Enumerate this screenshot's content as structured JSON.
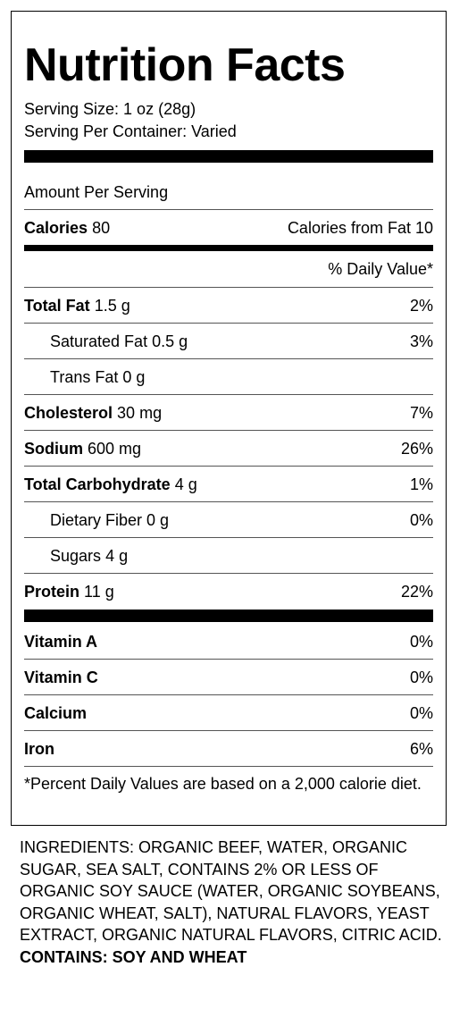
{
  "label": {
    "title": "Nutrition Facts",
    "serving_size": "Serving Size: 1 oz (28g)",
    "servings_per_container": "Serving Per Container: Varied",
    "amount_per_serving": "Amount Per Serving",
    "calories_label": "Calories",
    "calories_value": "80",
    "calories_from_fat": "Calories from Fat 10",
    "daily_value_header": "% Daily Value*",
    "nutrients": [
      {
        "name": "Total Fat",
        "amount": "1.5 g",
        "dv": "2%"
      },
      {
        "name": "Saturated Fat",
        "amount": "0.5 g",
        "dv": "3%"
      },
      {
        "name": "Trans Fat",
        "amount": "0 g",
        "dv": ""
      },
      {
        "name": "Cholesterol",
        "amount": "30 mg",
        "dv": "7%"
      },
      {
        "name": "Sodium",
        "amount": "600 mg",
        "dv": "26%"
      },
      {
        "name": "Total Carbohydrate",
        "amount": "4 g",
        "dv": "1%"
      },
      {
        "name": "Dietary Fiber",
        "amount": "0 g",
        "dv": "0%"
      },
      {
        "name": "Sugars",
        "amount": "4 g",
        "dv": ""
      },
      {
        "name": "Protein",
        "amount": "11 g",
        "dv": "22%"
      }
    ],
    "vitamins": [
      {
        "name": "Vitamin A",
        "dv": "0%"
      },
      {
        "name": "Vitamin C",
        "dv": "0%"
      },
      {
        "name": "Calcium",
        "dv": "0%"
      },
      {
        "name": "Iron",
        "dv": "6%"
      }
    ],
    "footnote": "*Percent Daily Values are based on a 2,000 calorie diet."
  },
  "ingredients": {
    "text": "INGREDIENTS: ORGANIC BEEF, WATER, ORGANIC SUGAR, SEA SALT, CONTAINS 2% OR LESS OF ORGANIC SOY SAUCE (WATER, ORGANIC SOYBEANS, ORGANIC WHEAT, SALT), NATURAL FLAVORS, YEAST EXTRACT, ORGANIC NATURAL FLAVORS, CITRIC ACID.",
    "contains": "CONTAINS: SOY AND WHEAT"
  }
}
